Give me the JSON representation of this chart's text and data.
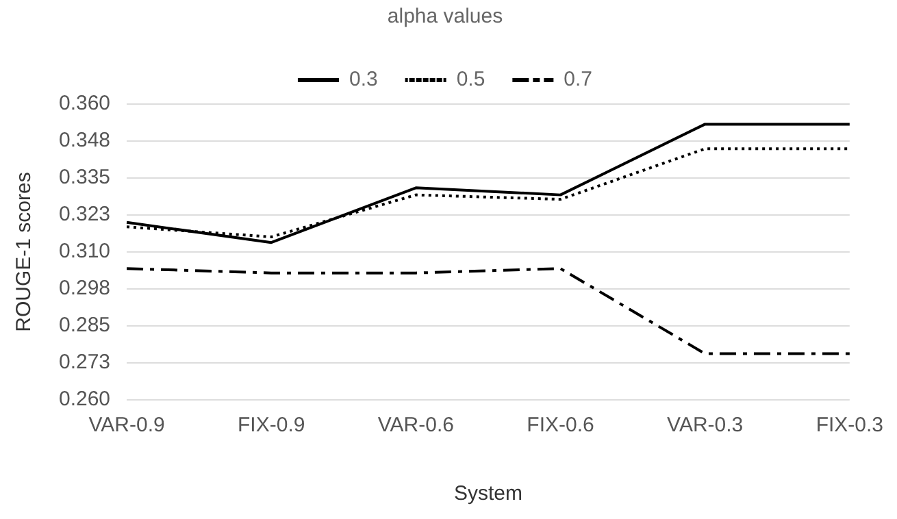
{
  "chart_data": {
    "type": "line",
    "legend_title": "alpha values",
    "xlabel": "System",
    "ylabel": "ROUGE-1 scores",
    "categories": [
      "VAR-0.9",
      "FIX-0.9",
      "VAR-0.6",
      "FIX-0.6",
      "VAR-0.3",
      "FIX-0.3"
    ],
    "series": [
      {
        "name": "0.3",
        "color": "#000000",
        "line_style": "solid",
        "values": [
          0.32,
          0.3132,
          0.3317,
          0.3293,
          0.3532,
          0.3532
        ]
      },
      {
        "name": "0.5",
        "color": "#000000",
        "line_style": "dotted",
        "values": [
          0.3185,
          0.3151,
          0.3293,
          0.3278,
          0.3449,
          0.3449
        ]
      },
      {
        "name": "0.7",
        "color": "#000000",
        "line_style": "dashed",
        "values": [
          0.3044,
          0.3029,
          0.3029,
          0.3044,
          0.2756,
          0.2756
        ]
      }
    ],
    "ylim": [
      0.26,
      0.36
    ],
    "yticks": [
      {
        "value": 0.26,
        "label": "0.260"
      },
      {
        "value": 0.2725,
        "label": "0.273"
      },
      {
        "value": 0.285,
        "label": "0.285"
      },
      {
        "value": 0.2975,
        "label": "0.298"
      },
      {
        "value": 0.31,
        "label": "0.310"
      },
      {
        "value": 0.3225,
        "label": "0.323"
      },
      {
        "value": 0.335,
        "label": "0.335"
      },
      {
        "value": 0.3475,
        "label": "0.348"
      },
      {
        "value": 0.36,
        "label": "0.360"
      }
    ],
    "grid": "y",
    "legend": "top",
    "marker": "none"
  }
}
